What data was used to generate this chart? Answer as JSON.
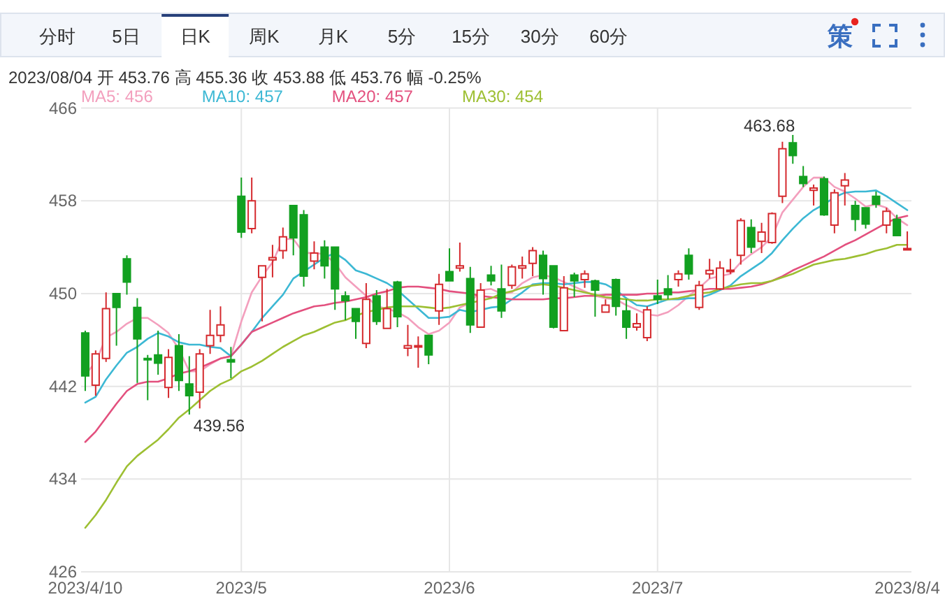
{
  "chart_data": {
    "type": "candlestick",
    "categories": [
      "2023/4/10",
      null,
      null,
      null,
      null,
      null,
      null,
      null,
      null,
      null,
      null,
      null,
      null,
      null,
      null,
      "2023/5",
      null,
      null,
      null,
      null,
      null,
      null,
      null,
      null,
      null,
      null,
      null,
      null,
      null,
      null,
      null,
      null,
      null,
      null,
      null,
      "2023/6",
      null,
      null,
      null,
      null,
      null,
      null,
      null,
      null,
      null,
      null,
      null,
      null,
      null,
      null,
      null,
      null,
      null,
      null,
      null,
      "2023/7",
      null,
      null,
      null,
      null,
      null,
      null,
      null,
      null,
      null,
      null,
      null,
      null,
      null,
      null,
      null,
      null,
      null,
      null,
      null,
      null,
      null,
      null,
      null,
      "2023/8/4"
    ],
    "ohlc": [
      [
        446.6,
        446.8,
        441.6,
        442.9
      ],
      [
        442.1,
        445.1,
        441.2,
        444.8
      ],
      [
        444.4,
        450.1,
        444.1,
        448.7
      ],
      [
        450.0,
        450.0,
        445.5,
        448.8
      ],
      [
        453.0,
        453.3,
        449.9,
        451.0
      ],
      [
        448.8,
        449.6,
        442.3,
        446.1
      ],
      [
        444.4,
        444.7,
        440.8,
        444.3
      ],
      [
        444.7,
        446.8,
        443.0,
        444.0
      ],
      [
        441.9,
        445.2,
        441.0,
        444.5
      ],
      [
        445.5,
        446.5,
        441.6,
        442.5
      ],
      [
        442.2,
        444.6,
        439.56,
        441.2
      ],
      [
        441.5,
        445.2,
        440.1,
        444.8
      ],
      [
        445.5,
        448.6,
        444.8,
        446.4
      ],
      [
        446.4,
        448.9,
        445.8,
        447.3
      ],
      [
        444.3,
        445.4,
        442.7,
        444.1
      ],
      [
        458.4,
        460.0,
        454.8,
        455.3
      ],
      [
        455.6,
        460.0,
        455.2,
        458.0
      ],
      [
        451.4,
        452.4,
        447.6,
        452.4
      ],
      [
        452.9,
        454.2,
        451.4,
        453.1
      ],
      [
        453.7,
        455.7,
        453.0,
        454.9
      ],
      [
        457.6,
        457.6,
        453.3,
        454.8
      ],
      [
        456.8,
        457.2,
        450.6,
        451.5
      ],
      [
        452.8,
        454.5,
        452.1,
        453.5
      ],
      [
        454.0,
        454.6,
        451.3,
        452.4
      ],
      [
        454.0,
        454.0,
        448.6,
        450.4
      ],
      [
        449.8,
        450.2,
        447.7,
        449.4
      ],
      [
        448.7,
        448.7,
        446.1,
        447.6
      ],
      [
        445.7,
        450.9,
        445.3,
        449.5
      ],
      [
        449.8,
        450.3,
        447.3,
        447.6
      ],
      [
        447.0,
        450.4,
        447.0,
        448.7
      ],
      [
        451.0,
        451.1,
        447.1,
        448.0
      ],
      [
        445.3,
        447.3,
        444.6,
        445.5
      ],
      [
        445.4,
        446.3,
        443.6,
        445.5
      ],
      [
        446.4,
        446.4,
        443.9,
        444.7
      ],
      [
        448.5,
        451.7,
        447.3,
        450.8
      ],
      [
        451.9,
        453.9,
        451.1,
        451.1
      ],
      [
        452.2,
        454.4,
        451.9,
        452.4
      ],
      [
        451.3,
        452.3,
        446.6,
        447.3
      ],
      [
        447.1,
        450.9,
        447.1,
        450.3
      ],
      [
        451.6,
        452.4,
        450.7,
        451.1
      ],
      [
        450.4,
        452.5,
        447.9,
        448.5
      ],
      [
        450.7,
        452.5,
        450.4,
        452.3
      ],
      [
        452.2,
        453.2,
        451.3,
        452.4
      ],
      [
        452.6,
        454.0,
        451.5,
        453.7
      ],
      [
        453.3,
        453.7,
        449.9,
        451.3
      ],
      [
        452.4,
        452.4,
        447.0,
        447.1
      ],
      [
        446.8,
        451.5,
        446.8,
        450.5
      ],
      [
        451.6,
        451.8,
        449.7,
        451.1
      ],
      [
        451.2,
        452.0,
        450.5,
        451.7
      ],
      [
        451.1,
        451.2,
        448.0,
        450.3
      ],
      [
        448.4,
        449.5,
        448.4,
        449.0
      ],
      [
        451.2,
        451.3,
        448.1,
        448.9
      ],
      [
        448.5,
        449.5,
        446.1,
        447.1
      ],
      [
        447.1,
        448.3,
        446.8,
        447.4
      ],
      [
        446.2,
        448.9,
        445.9,
        448.6
      ],
      [
        449.8,
        451.2,
        449.1,
        449.5
      ],
      [
        450.4,
        451.6,
        449.5,
        449.9
      ],
      [
        451.2,
        452.0,
        450.6,
        451.7
      ],
      [
        453.3,
        453.9,
        451.2,
        451.7
      ],
      [
        448.8,
        451.1,
        448.6,
        450.7
      ],
      [
        451.7,
        453.0,
        451.3,
        452.0
      ],
      [
        450.4,
        452.8,
        450.3,
        452.2
      ],
      [
        451.9,
        453.0,
        451.7,
        452.0
      ],
      [
        453.3,
        456.5,
        452.5,
        456.3
      ],
      [
        455.7,
        456.4,
        453.5,
        454.0
      ],
      [
        454.5,
        456.1,
        453.5,
        455.3
      ],
      [
        454.4,
        457.0,
        454.3,
        456.9
      ],
      [
        458.4,
        463.1,
        457.8,
        462.5
      ],
      [
        463.0,
        463.68,
        461.2,
        461.9
      ],
      [
        460.1,
        461.0,
        459.2,
        459.5
      ],
      [
        458.9,
        459.4,
        457.6,
        459.1
      ],
      [
        459.9,
        460.1,
        456.7,
        456.8
      ],
      [
        455.9,
        459.0,
        455.2,
        458.7
      ],
      [
        459.3,
        460.4,
        457.6,
        459.8
      ],
      [
        457.6,
        458.0,
        455.4,
        456.4
      ],
      [
        457.4,
        457.4,
        455.6,
        456.0
      ],
      [
        458.4,
        458.8,
        457.4,
        457.7
      ],
      [
        455.9,
        457.4,
        455.2,
        457.1
      ],
      [
        456.4,
        456.8,
        455.0,
        455.0
      ],
      [
        453.76,
        455.36,
        453.76,
        453.88
      ]
    ],
    "colors": [
      "#12a020",
      "#d52a2e",
      "#d52a2e",
      "#12a020",
      "#12a020",
      "#12a020",
      "#12a020",
      "#12a020",
      "#d52a2e",
      "#12a020",
      "#12a020",
      "#d52a2e",
      "#d52a2e",
      "#d52a2e",
      "#12a020",
      "#12a020",
      "#d52a2e",
      "#d52a2e",
      "#d52a2e",
      "#d52a2e",
      "#12a020",
      "#12a020",
      "#d52a2e",
      "#12a020",
      "#12a020",
      "#12a020",
      "#12a020",
      "#d52a2e",
      "#12a020",
      "#d52a2e",
      "#12a020",
      "#d52a2e",
      "#d52a2e",
      "#12a020",
      "#d52a2e",
      "#12a020",
      "#d52a2e",
      "#12a020",
      "#d52a2e",
      "#12a020",
      "#12a020",
      "#d52a2e",
      "#d52a2e",
      "#d52a2e",
      "#12a020",
      "#12a020",
      "#d52a2e",
      "#12a020",
      "#d52a2e",
      "#12a020",
      "#d52a2e",
      "#12a020",
      "#12a020",
      "#d52a2e",
      "#d52a2e",
      "#12a020",
      "#12a020",
      "#d52a2e",
      "#12a020",
      "#d52a2e",
      "#d52a2e",
      "#d52a2e",
      "#d52a2e",
      "#d52a2e",
      "#12a020",
      "#d52a2e",
      "#d52a2e",
      "#d52a2e",
      "#12a020",
      "#12a020",
      "#d52a2e",
      "#12a020",
      "#d52a2e",
      "#d52a2e",
      "#12a020",
      "#12a020",
      "#12a020",
      "#d52a2e",
      "#12a020",
      "#d52a2e"
    ],
    "series": [
      {
        "type": "line",
        "name": "MA5: 456",
        "color": "#f39fbd",
        "values": [
          443.0,
          444.1,
          446.2,
          446.7,
          447.4,
          447.9,
          447.9,
          447.3,
          446.6,
          445.2,
          443.3,
          443.3,
          443.9,
          444.4,
          444.6,
          447.6,
          450.1,
          451.5,
          452.7,
          454.7,
          454.7,
          453.5,
          453.5,
          453.4,
          452.6,
          451.4,
          450.6,
          449.8,
          448.9,
          448.7,
          448.4,
          447.9,
          447.1,
          446.5,
          446.8,
          447.5,
          448.8,
          449.2,
          450.3,
          450.4,
          450.0,
          450.1,
          450.9,
          451.4,
          451.6,
          451.4,
          451.0,
          450.6,
          450.2,
          449.8,
          449.6,
          449.5,
          449.0,
          448.6,
          448.2,
          448.1,
          448.4,
          449.0,
          449.8,
          450.5,
          451.3,
          451.5,
          451.7,
          452.7,
          453.4,
          454.0,
          454.9,
          457.0,
          458.1,
          459.2,
          460.0,
          460.0,
          459.2,
          458.8,
          458.2,
          457.5,
          457.7,
          457.4,
          456.5,
          455.9
        ]
      },
      {
        "type": "line",
        "name": "MA10: 457",
        "color": "#3cb8d4",
        "values": [
          440.6,
          441.1,
          442.6,
          443.8,
          444.9,
          445.4,
          446.1,
          446.6,
          446.3,
          445.8,
          445.6,
          445.6,
          445.4,
          445.3,
          444.6,
          445.6,
          446.7,
          447.9,
          448.9,
          449.9,
          451.3,
          451.9,
          452.5,
          453.1,
          453.5,
          452.9,
          452.0,
          451.7,
          451.3,
          450.9,
          450.3,
          449.5,
          448.7,
          447.9,
          447.9,
          448.0,
          448.6,
          448.4,
          448.6,
          448.8,
          448.9,
          449.5,
          450.1,
          450.8,
          450.9,
          450.9,
          450.8,
          450.9,
          451.0,
          451.0,
          450.8,
          450.3,
          449.6,
          449.0,
          448.9,
          449.2,
          449.5,
          449.5,
          449.6,
          449.6,
          449.9,
          450.3,
          450.7,
          451.5,
          452.1,
          452.7,
          453.5,
          454.6,
          455.6,
          456.5,
          457.2,
          457.7,
          458.3,
          458.7,
          458.8,
          458.8,
          458.9,
          458.4,
          457.8,
          457.2
        ]
      },
      {
        "type": "line",
        "name": "MA20: 457",
        "color": "#e3507e",
        "values": [
          437.2,
          438.1,
          439.3,
          440.5,
          441.6,
          442.2,
          442.4,
          442.4,
          442.7,
          443.1,
          443.3,
          443.6,
          444.0,
          444.4,
          444.6,
          445.6,
          446.7,
          447.1,
          447.5,
          447.9,
          448.3,
          448.6,
          448.9,
          449.0,
          449.2,
          449.3,
          449.5,
          449.7,
          450.0,
          450.2,
          450.5,
          450.6,
          450.6,
          450.5,
          450.4,
          450.2,
          450.1,
          450.0,
          449.8,
          449.7,
          449.6,
          449.5,
          449.5,
          449.5,
          449.5,
          449.6,
          449.6,
          449.7,
          449.8,
          449.8,
          449.9,
          449.9,
          449.9,
          449.9,
          450.0,
          450.0,
          450.1,
          450.1,
          450.2,
          450.3,
          450.4,
          450.4,
          450.4,
          450.5,
          450.6,
          450.8,
          451.1,
          451.5,
          452.0,
          452.4,
          452.8,
          453.2,
          453.7,
          454.2,
          454.6,
          455.1,
          455.6,
          456.1,
          456.5,
          456.7
        ]
      },
      {
        "type": "line",
        "name": "MA30: 454",
        "color": "#9dbf32",
        "values": [
          429.8,
          430.9,
          432.2,
          433.7,
          435.1,
          436.0,
          436.7,
          437.4,
          438.3,
          439.3,
          440.0,
          440.8,
          441.6,
          442.2,
          442.6,
          443.3,
          443.7,
          444.2,
          444.8,
          445.4,
          445.9,
          446.4,
          446.7,
          447.1,
          447.5,
          447.7,
          448.1,
          448.4,
          448.6,
          448.8,
          448.9,
          448.9,
          448.9,
          448.8,
          448.7,
          448.8,
          449.0,
          449.2,
          449.4,
          449.6,
          450.0,
          450.2,
          450.5,
          450.7,
          450.8,
          450.7,
          450.5,
          450.3,
          450.1,
          449.9,
          449.7,
          449.6,
          449.5,
          449.4,
          449.4,
          449.5,
          449.5,
          449.6,
          449.8,
          450.0,
          450.1,
          450.4,
          450.6,
          450.8,
          450.9,
          450.9,
          451.1,
          451.4,
          451.7,
          452.1,
          452.5,
          452.7,
          452.9,
          453.0,
          453.2,
          453.4,
          453.7,
          453.9,
          454.2,
          454.2
        ]
      }
    ],
    "ylim": [
      426,
      466
    ],
    "yticks": [
      426,
      434,
      442,
      450,
      458,
      466
    ],
    "grid": true,
    "legend": "top left",
    "annotations": [
      "2023/08/04 开 453.76 高 455.36 收 453.88 低 453.76 幅 -0.25%",
      "分时",
      "5日",
      "日K",
      "周K",
      "月K",
      "5分",
      "15分",
      "30分",
      "60分",
      "策",
      "463.68",
      "439.56"
    ]
  }
}
